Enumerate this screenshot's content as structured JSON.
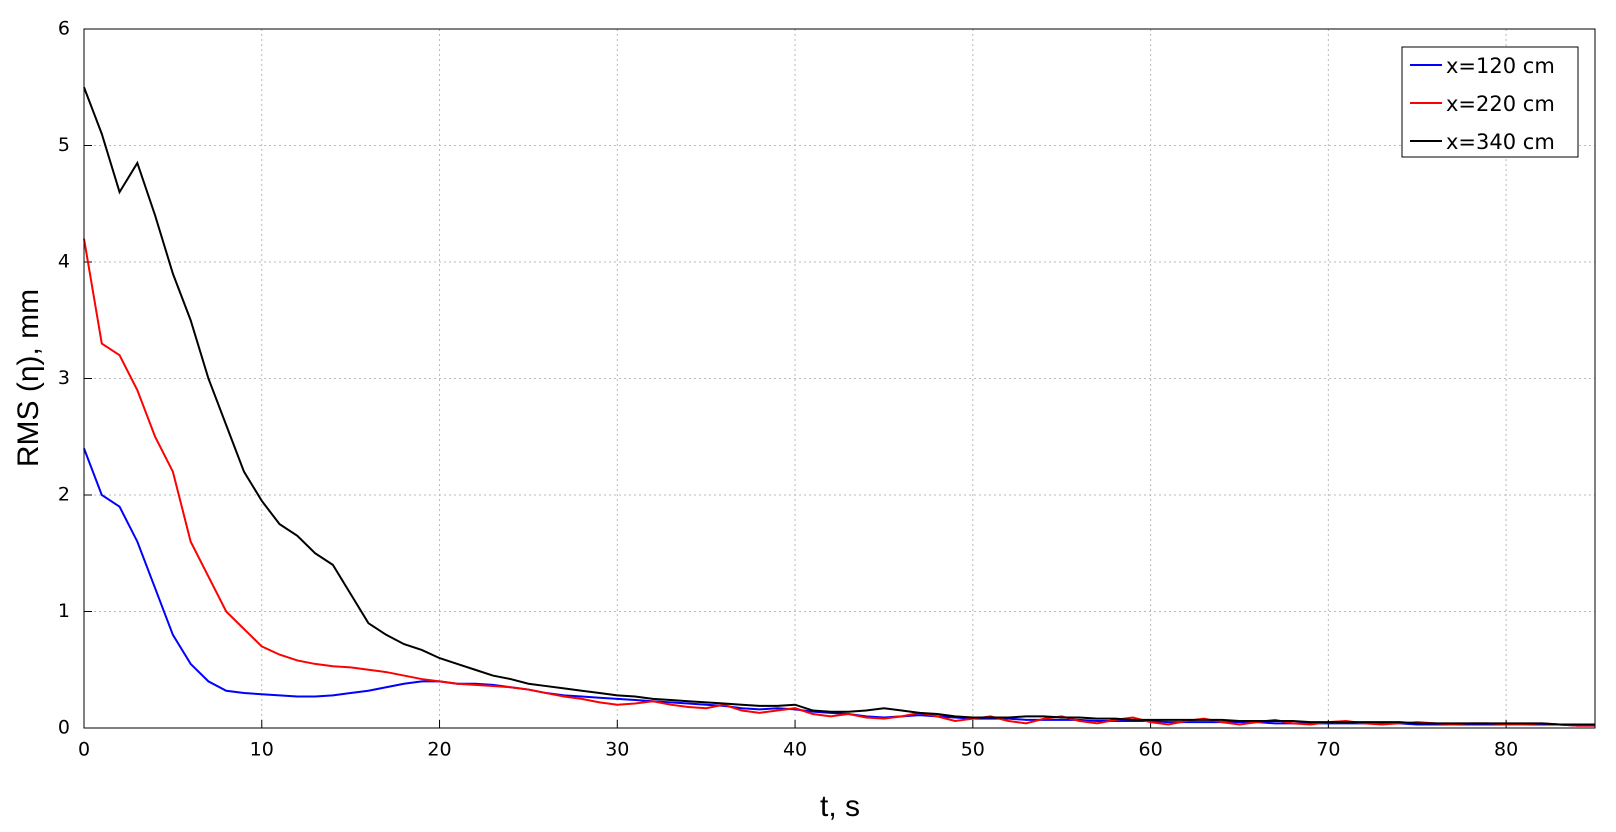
{
  "chart_data": {
    "type": "line",
    "xlabel": "t, s",
    "ylabel": "RMS (η), mm",
    "x": [
      0,
      1,
      2,
      3,
      4,
      5,
      6,
      7,
      8,
      9,
      10,
      11,
      12,
      13,
      14,
      15,
      16,
      17,
      18,
      19,
      20,
      21,
      22,
      23,
      24,
      25,
      26,
      27,
      28,
      29,
      30,
      31,
      32,
      33,
      34,
      35,
      36,
      37,
      38,
      39,
      40,
      41,
      42,
      43,
      44,
      45,
      46,
      47,
      48,
      49,
      50,
      51,
      52,
      53,
      54,
      55,
      56,
      57,
      58,
      59,
      60,
      61,
      62,
      63,
      64,
      65,
      66,
      67,
      68,
      69,
      70,
      71,
      72,
      73,
      74,
      75,
      76,
      77,
      78,
      79,
      80,
      81,
      82,
      83,
      84,
      85
    ],
    "series": [
      {
        "name": "x=120 cm",
        "color": "#0000ff",
        "values": [
          2.4,
          2.0,
          1.9,
          1.6,
          1.2,
          0.8,
          0.55,
          0.4,
          0.32,
          0.3,
          0.29,
          0.28,
          0.27,
          0.27,
          0.28,
          0.3,
          0.32,
          0.35,
          0.38,
          0.4,
          0.4,
          0.38,
          0.38,
          0.37,
          0.35,
          0.33,
          0.3,
          0.28,
          0.27,
          0.26,
          0.25,
          0.24,
          0.23,
          0.22,
          0.21,
          0.2,
          0.19,
          0.17,
          0.16,
          0.17,
          0.16,
          0.14,
          0.13,
          0.12,
          0.1,
          0.09,
          0.1,
          0.11,
          0.1,
          0.09,
          0.08,
          0.08,
          0.08,
          0.07,
          0.07,
          0.07,
          0.07,
          0.06,
          0.06,
          0.06,
          0.06,
          0.05,
          0.05,
          0.05,
          0.05,
          0.05,
          0.05,
          0.04,
          0.04,
          0.04,
          0.04,
          0.04,
          0.04,
          0.04,
          0.04,
          0.03,
          0.03,
          0.03,
          0.03,
          0.03,
          0.03,
          0.03,
          0.03,
          0.03,
          0.02,
          0.02
        ]
      },
      {
        "name": "x=220 cm",
        "color": "#ff0000",
        "values": [
          4.2,
          3.3,
          3.2,
          2.9,
          2.5,
          2.2,
          1.6,
          1.3,
          1.0,
          0.85,
          0.7,
          0.63,
          0.58,
          0.55,
          0.53,
          0.52,
          0.5,
          0.48,
          0.45,
          0.42,
          0.4,
          0.38,
          0.37,
          0.36,
          0.35,
          0.33,
          0.3,
          0.27,
          0.25,
          0.22,
          0.2,
          0.21,
          0.23,
          0.2,
          0.18,
          0.17,
          0.2,
          0.15,
          0.13,
          0.15,
          0.17,
          0.12,
          0.1,
          0.12,
          0.09,
          0.08,
          0.1,
          0.13,
          0.1,
          0.06,
          0.08,
          0.1,
          0.06,
          0.04,
          0.08,
          0.1,
          0.06,
          0.04,
          0.07,
          0.09,
          0.05,
          0.03,
          0.06,
          0.08,
          0.05,
          0.03,
          0.05,
          0.07,
          0.04,
          0.03,
          0.05,
          0.06,
          0.04,
          0.03,
          0.04,
          0.05,
          0.04,
          0.03,
          0.04,
          0.04,
          0.03,
          0.03,
          0.04,
          0.03,
          0.02,
          0.02
        ]
      },
      {
        "name": "x=340 cm",
        "color": "#000000",
        "values": [
          5.5,
          5.1,
          4.6,
          4.85,
          4.4,
          3.9,
          3.5,
          3.0,
          2.6,
          2.2,
          1.95,
          1.75,
          1.65,
          1.5,
          1.4,
          1.15,
          0.9,
          0.8,
          0.72,
          0.67,
          0.6,
          0.55,
          0.5,
          0.45,
          0.42,
          0.38,
          0.36,
          0.34,
          0.32,
          0.3,
          0.28,
          0.27,
          0.25,
          0.24,
          0.23,
          0.22,
          0.21,
          0.2,
          0.19,
          0.19,
          0.2,
          0.15,
          0.14,
          0.14,
          0.15,
          0.17,
          0.15,
          0.13,
          0.12,
          0.1,
          0.09,
          0.09,
          0.09,
          0.1,
          0.1,
          0.09,
          0.09,
          0.08,
          0.08,
          0.07,
          0.07,
          0.07,
          0.07,
          0.07,
          0.07,
          0.06,
          0.06,
          0.06,
          0.06,
          0.05,
          0.05,
          0.05,
          0.05,
          0.05,
          0.05,
          0.04,
          0.04,
          0.04,
          0.04,
          0.04,
          0.04,
          0.04,
          0.04,
          0.03,
          0.03,
          0.03
        ]
      }
    ],
    "xlim": [
      0,
      85
    ],
    "xticks": [
      0,
      10,
      20,
      30,
      40,
      50,
      60,
      70,
      80
    ],
    "ylim": [
      0,
      6
    ],
    "yticks": [
      0,
      1,
      2,
      3,
      4,
      5,
      6
    ],
    "grid": true,
    "legend": "northeast"
  }
}
